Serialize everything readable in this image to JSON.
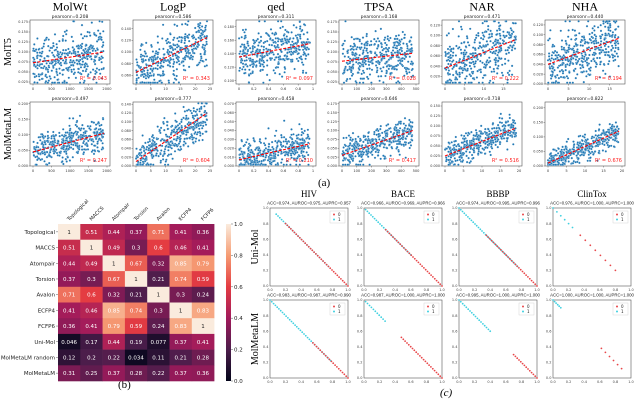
{
  "figure": {
    "label_a": "(a)",
    "label_b": "(b)",
    "label_c": "(c)"
  },
  "chart_data": [
    {
      "type": "scatter",
      "panel": "a",
      "columns": [
        "MolWt",
        "LogP",
        "qed",
        "TPSA",
        "NAR",
        "NHA"
      ],
      "rows": [
        "MolT5",
        "MolMetaLM"
      ],
      "point_color": "#1f77b4",
      "trend_color": "#ff0000",
      "panels": [
        {
          "row": "MolT5",
          "col": "MolWt",
          "pearson": "pearsonr=0.208",
          "r": 0.208,
          "r2": "R² = 0.043",
          "xlim": [
            0,
            2000
          ],
          "xticks": [
            0,
            500,
            1000,
            1500,
            2000
          ],
          "ylim": [
            0.02,
            0.18
          ],
          "yticks": [
            0.025,
            0.05,
            0.075,
            0.1,
            0.125,
            0.15,
            0.175
          ],
          "trend_y": [
            0.073,
            0.1
          ]
        },
        {
          "row": "MolT5",
          "col": "LogP",
          "pearson": "pearsonr=0.586",
          "r": 0.586,
          "r2": "R² = 0.343",
          "xlim": [
            0,
            25
          ],
          "xticks": [
            0,
            5,
            10,
            15,
            20,
            25
          ],
          "ylim": [
            0.045,
            0.155
          ],
          "yticks": [
            0.06,
            0.08,
            0.1,
            0.12,
            0.14
          ],
          "trend_y": [
            0.065,
            0.125
          ]
        },
        {
          "row": "MolT5",
          "col": "qed",
          "pearson": "pearsonr=0.311",
          "r": 0.311,
          "r2": "R² = 0.097",
          "xlim": [
            0,
            1
          ],
          "xticks": [
            0,
            0.2,
            0.4,
            0.6,
            0.8,
            1.0
          ],
          "ylim": [
            0.095,
            0.19
          ],
          "yticks": [
            0.1,
            0.12,
            0.14,
            0.16,
            0.18
          ],
          "trend_y": [
            0.135,
            0.155
          ]
        },
        {
          "row": "MolT5",
          "col": "TPSA",
          "pearson": "pearsonr=0.168",
          "r": 0.168,
          "r2": "R² = 0.028",
          "xlim": [
            0,
            500
          ],
          "xticks": [
            0,
            100,
            200,
            300,
            400,
            500
          ],
          "ylim": [
            0.02,
            0.18
          ],
          "yticks": [
            0.025,
            0.05,
            0.075,
            0.1,
            0.125,
            0.15,
            0.175
          ],
          "trend_y": [
            0.077,
            0.097
          ]
        },
        {
          "row": "MolT5",
          "col": "NAR",
          "pearson": "pearsonr=0.471",
          "r": 0.471,
          "r2": "R² = 0.222",
          "xlim": [
            0,
            19
          ],
          "xticks": [
            0,
            5,
            10,
            15
          ],
          "ylim": [
            0.005,
            0.13
          ],
          "yticks": [
            0.02,
            0.04,
            0.06,
            0.08,
            0.1,
            0.12
          ],
          "trend_y": [
            0.036,
            0.092
          ]
        },
        {
          "row": "MolT5",
          "col": "NHA",
          "pearson": "pearsonr=0.440",
          "r": 0.44,
          "r2": "R² = 0.194",
          "xlim": [
            0,
            18
          ],
          "xticks": [
            0,
            5,
            10,
            15
          ],
          "ylim": [
            0,
            0.13
          ],
          "yticks": [
            0,
            0.02,
            0.04,
            0.06,
            0.08,
            0.1,
            0.12
          ],
          "trend_y": [
            0.04,
            0.093
          ]
        },
        {
          "row": "MolMetaLM",
          "col": "MolWt",
          "pearson": "pearsonr=0.497",
          "r": 0.497,
          "r2": "R² = 0.247",
          "xlim": [
            0,
            2000
          ],
          "xticks": [
            0,
            500,
            1000,
            1500,
            2000
          ],
          "ylim": [
            0,
            0.205
          ],
          "yticks": [
            0,
            0.05,
            0.1,
            0.15,
            0.2
          ],
          "trend_y": [
            0.045,
            0.105
          ]
        },
        {
          "row": "MolMetaLM",
          "col": "LogP",
          "pearson": "pearsonr=0.777",
          "r": 0.777,
          "r2": "R² = 0.604",
          "xlim": [
            0,
            25
          ],
          "xticks": [
            0,
            5,
            10,
            15,
            20,
            25
          ],
          "ylim": [
            0,
            0.145
          ],
          "yticks": [
            0,
            0.02,
            0.04,
            0.06,
            0.08,
            0.1,
            0.12,
            0.14
          ],
          "trend_y": [
            0.01,
            0.12
          ]
        },
        {
          "row": "MolMetaLM",
          "col": "qed",
          "pearson": "pearsonr=0.458",
          "r": 0.458,
          "r2": "R² = 0.210",
          "xlim": [
            0,
            1
          ],
          "xticks": [
            0,
            0.2,
            0.4,
            0.6,
            0.8,
            1.0
          ],
          "ylim": [
            0,
            0.072
          ],
          "yticks": [
            0,
            0.01,
            0.02,
            0.03,
            0.04,
            0.05,
            0.06,
            0.07
          ],
          "trend_y": [
            0.007,
            0.025
          ]
        },
        {
          "row": "MolMetaLM",
          "col": "TPSA",
          "pearson": "pearsonr=0.646",
          "r": 0.646,
          "r2": "R² = 0.417",
          "xlim": [
            0,
            500
          ],
          "xticks": [
            0,
            100,
            200,
            300,
            400,
            500
          ],
          "ylim": [
            0,
            0.18
          ],
          "yticks": [
            0,
            0.025,
            0.05,
            0.075,
            0.1,
            0.125,
            0.15,
            0.175
          ],
          "trend_y": [
            0.03,
            0.1
          ]
        },
        {
          "row": "MolMetaLM",
          "col": "NAR",
          "pearson": "pearsonr=0.718",
          "r": 0.718,
          "r2": "R² = 0.516",
          "xlim": [
            0,
            20
          ],
          "xticks": [
            0,
            5,
            10,
            15,
            20
          ],
          "ylim": [
            0,
            0.16
          ],
          "yticks": [
            0,
            0.025,
            0.05,
            0.075,
            0.1,
            0.125,
            0.15
          ],
          "trend_y": [
            0.025,
            0.095
          ]
        },
        {
          "row": "MolMetaLM",
          "col": "NHA",
          "pearson": "pearsonr=0.822",
          "r": 0.822,
          "r2": "R² = 0.676",
          "xlim": [
            0,
            20
          ],
          "xticks": [
            0,
            5,
            10,
            15,
            20
          ],
          "ylim": [
            0,
            0.22
          ],
          "yticks": [
            0,
            0.05,
            0.1,
            0.15,
            0.2
          ],
          "trend_y": [
            0.01,
            0.12
          ]
        }
      ]
    },
    {
      "type": "heatmap",
      "panel": "b",
      "x_labels": [
        "Topological",
        "MACCS",
        "Atompair",
        "Torsion",
        "Avalon",
        "ECFP4",
        "FCFP6"
      ],
      "y_labels": [
        "Topological",
        "MACCS",
        "Atompair",
        "Torsion",
        "Avalon",
        "ECFP4",
        "FCFP6",
        "Uni-Mol",
        "MolMetaLM random",
        "MolMetaLM"
      ],
      "values": [
        [
          "1",
          "0.51",
          "0.44",
          "0.37",
          "0.71",
          "0.41",
          "0.36"
        ],
        [
          "0.51",
          "1",
          "0.49",
          "0.3",
          "0.6",
          "0.46",
          "0.41"
        ],
        [
          "0.44",
          "0.49",
          "1",
          "0.67",
          "0.32",
          "0.85",
          "0.79"
        ],
        [
          "0.37",
          "0.3",
          "0.67",
          "1",
          "0.21",
          "0.74",
          "0.59"
        ],
        [
          "0.71",
          "0.6",
          "0.32",
          "0.21",
          "1",
          "0.3",
          "0.24"
        ],
        [
          "0.41",
          "0.46",
          "0.85",
          "0.74",
          "0.3",
          "1",
          "0.83"
        ],
        [
          "0.36",
          "0.41",
          "0.79",
          "0.59",
          "0.24",
          "0.83",
          "1"
        ],
        [
          "0.046",
          "0.17",
          "0.44",
          "0.19",
          "0.077",
          "0.37",
          "0.41"
        ],
        [
          "0.12",
          "0.2",
          "0.22",
          "0.034",
          "0.11",
          "0.21",
          "0.28"
        ],
        [
          "0.31",
          "0.25",
          "0.37",
          "0.28",
          "0.22",
          "0.37",
          "0.36"
        ]
      ],
      "colorbar_ticks": [
        "0.0",
        "0.2",
        "0.4",
        "0.6",
        "0.8",
        "1.0"
      ],
      "vlim": [
        0,
        1
      ],
      "colormap": "rocket"
    },
    {
      "type": "scatter",
      "panel": "c",
      "columns": [
        "HIV",
        "BACE",
        "BBBP",
        "ClinTox"
      ],
      "rows": [
        "Uni-Mol",
        "MolMetaLM"
      ],
      "legend": [
        "0",
        "1"
      ],
      "legend_placement": "top-right",
      "class_colors": {
        "0": "#e8474a",
        "1": "#40d0e0"
      },
      "xlim": [
        0,
        1
      ],
      "ylim": [
        0,
        1
      ],
      "ticks": [
        "0.0",
        "0.2",
        "0.4",
        "0.6",
        "0.8",
        "1.0"
      ],
      "panels": [
        {
          "row": "Uni-Mol",
          "col": "HIV",
          "title": "ACC=0.974, AUROC=0.975, AUPRC=0.957",
          "class1_x": [
            0.08,
            0.75
          ],
          "class0_x": [
            0.2,
            1.0
          ]
        },
        {
          "row": "Uni-Mol",
          "col": "BACE",
          "title": "ACC=0.966, AUROC=0.969, AUPRC=0.966",
          "class1_x": [
            0.02,
            0.6
          ],
          "class0_x": [
            0.28,
            1.0
          ]
        },
        {
          "row": "Uni-Mol",
          "col": "BBBP",
          "title": "ACC=0.974, AUROC=0.995, AUPRC=0.996",
          "class1_x": [
            0.0,
            0.75
          ],
          "class0_x": [
            0.35,
            1.0
          ]
        },
        {
          "row": "Uni-Mol",
          "col": "ClinTox",
          "title": "ACC=0.976, AUROC=1.000, AUPRC=1.000",
          "class1_x": [
            0.0,
            0.25
          ],
          "class0_x": [
            0.35,
            0.8
          ]
        },
        {
          "row": "MolMetaLM",
          "col": "HIV",
          "title": "ACC=0.983, AUROC=0.987, AUPRC=0.990",
          "class1_x": [
            0.0,
            0.78
          ],
          "class0_x": [
            0.55,
            1.0
          ]
        },
        {
          "row": "MolMetaLM",
          "col": "BACE",
          "title": "ACC=0.987, AUROC=1.000, AUPRC=1.000",
          "class1_x": [
            0.02,
            0.27
          ],
          "class0_x": [
            0.48,
            1.0
          ]
        },
        {
          "row": "MolMetaLM",
          "col": "BBBP",
          "title": "ACC=0.995, AUROC=1.000, AUPRC=1.000",
          "class1_x": [
            0.0,
            0.4
          ],
          "class0_x": [
            0.7,
            1.0
          ]
        },
        {
          "row": "MolMetaLM",
          "col": "ClinTox",
          "title": "ACC=1.000, AUROC=1.000, AUPRC=1.000",
          "class1_x": [
            0.0,
            0.1
          ],
          "class0_x": [
            0.62,
            0.88
          ]
        }
      ]
    }
  ]
}
